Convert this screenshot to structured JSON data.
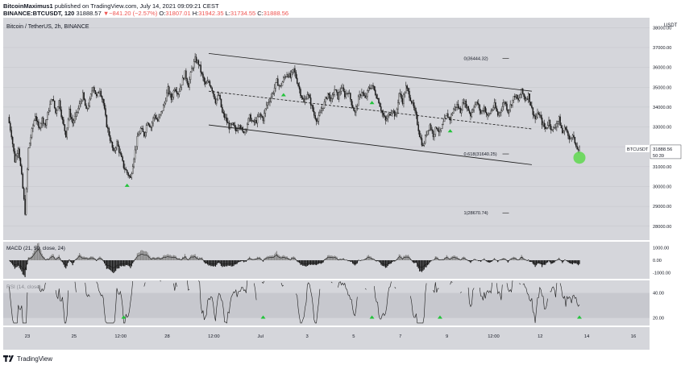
{
  "header": {
    "author": "BitcoinMaximus1",
    "published_text": "published on TradingView.com, July 14, 2021 09:09:21 CEST",
    "symbol": "BINANCE:BTCUSDT, 120",
    "last": "31888.57",
    "change": "▼−841.20 (−2.57%)",
    "o_label": "O:",
    "o_val": "31807.01",
    "h_label": "H:",
    "h_val": "31942.35",
    "l_label": "L:",
    "l_val": "31734.55",
    "c_label": "C:",
    "c_val": "31888.56"
  },
  "chart_data": [
    {
      "type": "candlestick",
      "title": "Bitcoin / TetherUS, 2h, BINANCE",
      "y_axis_unit": "USDT",
      "ylim": [
        27300,
        38500
      ],
      "y_ticks": [
        28000,
        29000,
        30000,
        31000,
        32000,
        33000,
        34000,
        35000,
        36000,
        37000,
        38000
      ],
      "y_tick_labels": [
        "28000.00",
        "29000.00",
        "30000.00",
        "31000.00",
        "32000.00",
        "33000.00",
        "34000.00",
        "35000.00",
        "36000.00",
        "37000.00",
        "38000.00"
      ],
      "x_tick_labels": [
        "23",
        "25",
        "12:00",
        "28",
        "12:00",
        "Jul",
        "3",
        "5",
        "7",
        "9",
        "12:00",
        "12",
        "14",
        "16"
      ],
      "price_path": [
        [
          0,
          33500
        ],
        [
          1,
          32600
        ],
        [
          2,
          31300
        ],
        [
          3,
          32000
        ],
        [
          4,
          30500
        ],
        [
          5,
          28700
        ],
        [
          6,
          31900
        ],
        [
          7,
          32800
        ],
        [
          8,
          33600
        ],
        [
          9,
          32900
        ],
        [
          10,
          33400
        ],
        [
          11,
          33100
        ],
        [
          12,
          33900
        ],
        [
          13,
          34500
        ],
        [
          14,
          33700
        ],
        [
          15,
          34300
        ],
        [
          16,
          33300
        ],
        [
          17,
          32600
        ],
        [
          18,
          33800
        ],
        [
          19,
          33200
        ],
        [
          20,
          33600
        ],
        [
          21,
          34100
        ],
        [
          22,
          34600
        ],
        [
          23,
          33800
        ],
        [
          24,
          34300
        ],
        [
          25,
          35100
        ],
        [
          26,
          34500
        ],
        [
          27,
          34900
        ],
        [
          28,
          34200
        ],
        [
          29,
          33100
        ],
        [
          30,
          32400
        ],
        [
          31,
          31700
        ],
        [
          32,
          32200
        ],
        [
          33,
          31600
        ],
        [
          34,
          31000
        ],
        [
          35,
          30700
        ],
        [
          36,
          30400
        ],
        [
          37,
          31500
        ],
        [
          38,
          32400
        ],
        [
          39,
          32900
        ],
        [
          40,
          32600
        ],
        [
          41,
          33300
        ],
        [
          42,
          33000
        ],
        [
          43,
          33600
        ],
        [
          44,
          33300
        ],
        [
          45,
          33700
        ],
        [
          46,
          34200
        ],
        [
          47,
          34900
        ],
        [
          48,
          34400
        ],
        [
          49,
          35000
        ],
        [
          50,
          34700
        ],
        [
          51,
          35200
        ],
        [
          52,
          35700
        ],
        [
          53,
          35100
        ],
        [
          54,
          35900
        ],
        [
          55,
          36400
        ],
        [
          56,
          36200
        ],
        [
          57,
          35600
        ],
        [
          58,
          35100
        ],
        [
          59,
          35300
        ],
        [
          60,
          34900
        ],
        [
          61,
          34300
        ],
        [
          62,
          34600
        ],
        [
          63,
          33700
        ],
        [
          64,
          33400
        ],
        [
          65,
          33000
        ],
        [
          66,
          33100
        ],
        [
          67,
          32800
        ],
        [
          68,
          33200
        ],
        [
          69,
          32700
        ],
        [
          70,
          33000
        ],
        [
          71,
          33500
        ],
        [
          72,
          33200
        ],
        [
          73,
          33300
        ],
        [
          74,
          33600
        ],
        [
          75,
          33400
        ],
        [
          76,
          34100
        ],
        [
          77,
          34400
        ],
        [
          78,
          34800
        ],
        [
          79,
          35300
        ],
        [
          80,
          35000
        ],
        [
          81,
          35400
        ],
        [
          82,
          35700
        ],
        [
          83,
          35500
        ],
        [
          84,
          35900
        ],
        [
          85,
          35300
        ],
        [
          86,
          34700
        ],
        [
          87,
          34200
        ],
        [
          88,
          34700
        ],
        [
          89,
          34200
        ],
        [
          90,
          33600
        ],
        [
          91,
          33300
        ],
        [
          92,
          33800
        ],
        [
          93,
          34200
        ],
        [
          94,
          34700
        ],
        [
          95,
          34300
        ],
        [
          96,
          34900
        ],
        [
          97,
          34500
        ],
        [
          98,
          35000
        ],
        [
          99,
          34600
        ],
        [
          100,
          34800
        ],
        [
          101,
          34200
        ],
        [
          102,
          33700
        ],
        [
          103,
          34400
        ],
        [
          104,
          34800
        ],
        [
          105,
          34400
        ],
        [
          106,
          34900
        ],
        [
          107,
          35100
        ],
        [
          108,
          34700
        ],
        [
          109,
          34300
        ],
        [
          110,
          33700
        ],
        [
          111,
          33300
        ],
        [
          112,
          33600
        ],
        [
          113,
          33900
        ],
        [
          114,
          33500
        ],
        [
          115,
          34700
        ],
        [
          116,
          34300
        ],
        [
          117,
          35000
        ],
        [
          118,
          34600
        ],
        [
          119,
          34100
        ],
        [
          120,
          33500
        ],
        [
          121,
          32600
        ],
        [
          122,
          32000
        ],
        [
          123,
          32700
        ],
        [
          124,
          33100
        ],
        [
          125,
          32600
        ],
        [
          126,
          33000
        ],
        [
          127,
          32700
        ],
        [
          128,
          33200
        ],
        [
          129,
          33600
        ],
        [
          130,
          33400
        ],
        [
          131,
          33900
        ],
        [
          132,
          34100
        ],
        [
          133,
          33800
        ],
        [
          134,
          34300
        ],
        [
          135,
          34000
        ],
        [
          136,
          33600
        ],
        [
          137,
          34100
        ],
        [
          138,
          34200
        ],
        [
          139,
          33700
        ],
        [
          140,
          34000
        ],
        [
          141,
          33500
        ],
        [
          142,
          33800
        ],
        [
          143,
          34100
        ],
        [
          144,
          33600
        ],
        [
          145,
          33900
        ],
        [
          146,
          34300
        ],
        [
          147,
          33800
        ],
        [
          148,
          34200
        ],
        [
          149,
          34600
        ],
        [
          150,
          34300
        ],
        [
          151,
          34800
        ],
        [
          152,
          34400
        ],
        [
          153,
          34600
        ],
        [
          154,
          33900
        ],
        [
          155,
          33400
        ],
        [
          156,
          33700
        ],
        [
          157,
          33200
        ],
        [
          158,
          32900
        ],
        [
          159,
          33300
        ],
        [
          160,
          32800
        ],
        [
          161,
          33100
        ],
        [
          162,
          33400
        ],
        [
          163,
          32700
        ],
        [
          164,
          33000
        ],
        [
          165,
          32300
        ],
        [
          166,
          32700
        ],
        [
          167,
          31900
        ],
        [
          168,
          31888
        ]
      ],
      "channel_upper": [
        [
          59,
          36700
        ],
        [
          154,
          34800
        ]
      ],
      "channel_middle": [
        [
          59,
          34800
        ],
        [
          154,
          32900
        ]
      ],
      "channel_lower": [
        [
          59,
          33100
        ],
        [
          154,
          31100
        ]
      ],
      "fib_levels": [
        {
          "label": "0(36444.32)",
          "value": 36444.32
        },
        {
          "label": "0.618(31640.25)",
          "value": 31640.25
        },
        {
          "label": "1(28670.74)",
          "value": 28670.74
        }
      ],
      "support_markers_x": [
        35,
        81,
        107,
        130
      ],
      "target_circle": {
        "x": 168,
        "y": 31450
      },
      "price_tag": {
        "label": "BTCUSDT",
        "value": "31888.56",
        "countdown": "50:39"
      }
    },
    {
      "type": "bar",
      "title": "MACD (21, 50, close, 24)",
      "y_tick_labels": [
        "1000.00",
        "0.00",
        "-1000.00"
      ],
      "y_ticks": [
        1000,
        0,
        -1000
      ],
      "ylim": [
        -1500,
        1500
      ]
    },
    {
      "type": "line",
      "title": "RSI (14, close)",
      "y_tick_labels": [
        "40.00",
        "20.00"
      ],
      "y_ticks": [
        40,
        20
      ],
      "ylim": [
        14,
        50
      ],
      "band": [
        20,
        40
      ],
      "bullish_divergence_markers_x": [
        34,
        75,
        107,
        127,
        168
      ]
    }
  ],
  "colors": {
    "background": "#d5d6db",
    "band": "#c7c8ce",
    "candle": "#1a1a1a",
    "line": "#1a1a1a",
    "marker": "#22c33a",
    "circle": "#5ed84e",
    "grid": "#c4c5ca"
  },
  "footer": {
    "brand": "TradingView"
  }
}
